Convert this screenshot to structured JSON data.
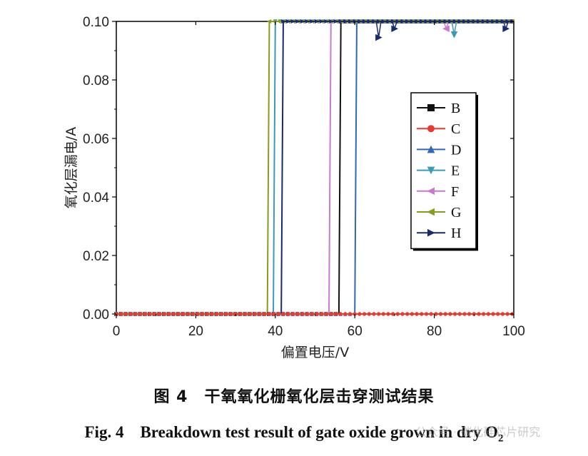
{
  "chart_data": {
    "type": "line",
    "xlabel": "偏置电压/V",
    "ylabel": "氧化层漏电/A",
    "xlim": [
      0,
      100
    ],
    "ylim": [
      0,
      0.1
    ],
    "xticks": [
      "0",
      "20",
      "40",
      "60",
      "80",
      "100"
    ],
    "yticks": [
      "0.00",
      "0.02",
      "0.04",
      "0.06",
      "0.08",
      "0.10"
    ],
    "legend_position": "right",
    "series": [
      {
        "name": "B",
        "color": "#111111",
        "marker": "square",
        "breakdown_v": 56.5,
        "x": [
          0,
          56.0,
          56.5,
          100
        ],
        "y": [
          0,
          0,
          0.1,
          0.1
        ]
      },
      {
        "name": "C",
        "color": "#e83a2e",
        "marker": "circle",
        "x": [
          0,
          100
        ],
        "y": [
          0,
          0
        ]
      },
      {
        "name": "D",
        "color": "#2e69b8",
        "marker": "triangle-up",
        "breakdown_v": 60.5,
        "x": [
          0,
          60.0,
          60.5,
          100
        ],
        "y": [
          0,
          0,
          0.1,
          0.1
        ]
      },
      {
        "name": "E",
        "color": "#3a9ab8",
        "marker": "triangle-down",
        "breakdown_v": 40.0,
        "x": [
          0,
          39.5,
          40.0,
          100
        ],
        "y": [
          0,
          0,
          0.1,
          0.1
        ]
      },
      {
        "name": "F",
        "color": "#c77ad0",
        "marker": "triangle-left",
        "breakdown_v": 54.0,
        "x": [
          0,
          53.5,
          54.0,
          100
        ],
        "y": [
          0,
          0,
          0.1,
          0.1
        ]
      },
      {
        "name": "G",
        "color": "#8a9a1c",
        "marker": "triangle-left",
        "breakdown_v": 38.5,
        "x": [
          0,
          38.0,
          38.5,
          100
        ],
        "y": [
          0,
          0,
          0.1,
          0.1
        ]
      },
      {
        "name": "H",
        "color": "#1a2a6e",
        "marker": "triangle-right",
        "breakdown_v": 42.0,
        "x": [
          0,
          41.5,
          42.0,
          100
        ],
        "y": [
          0,
          0,
          0.1,
          0.1
        ]
      }
    ]
  },
  "caption": {
    "cn": "图 4　干氧氧化栅氧化层击穿测试结果",
    "en_main": "Fig. 4　Breakdown test result of gate oxide grown in dry O",
    "en_sub": "2"
  },
  "watermark": "公众号 · 碳化硅芯片研究"
}
